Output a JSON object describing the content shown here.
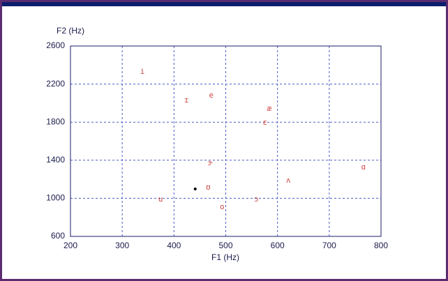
{
  "chart_data": {
    "type": "scatter",
    "xlabel": "F1 (Hz)",
    "ylabel": "F2 (Hz)",
    "xlim": [
      200,
      800
    ],
    "ylim": [
      600,
      2600
    ],
    "xticks": [
      200,
      300,
      400,
      500,
      600,
      700,
      800
    ],
    "yticks": [
      600,
      1000,
      1400,
      1800,
      2200,
      2600
    ],
    "grid": true,
    "series": [
      {
        "color": "#d04848",
        "labels": [
          "i",
          "ɪ",
          "e",
          "æ",
          "ɛ",
          "ɝ",
          "ʌ",
          "ɑ",
          "ʊ",
          "u",
          "ɔ",
          "o"
        ],
        "x": [
          339,
          424,
          472,
          584,
          576,
          470,
          621,
          766,
          466,
          374,
          559,
          493
        ],
        "values": [
          2329,
          2029,
          2080,
          1941,
          1794,
          1369,
          1186,
          1325,
          1113,
          988,
          988,
          908
        ]
      },
      {
        "color": "#000000",
        "x": [
          441
        ],
        "values": [
          1098
        ]
      }
    ]
  }
}
